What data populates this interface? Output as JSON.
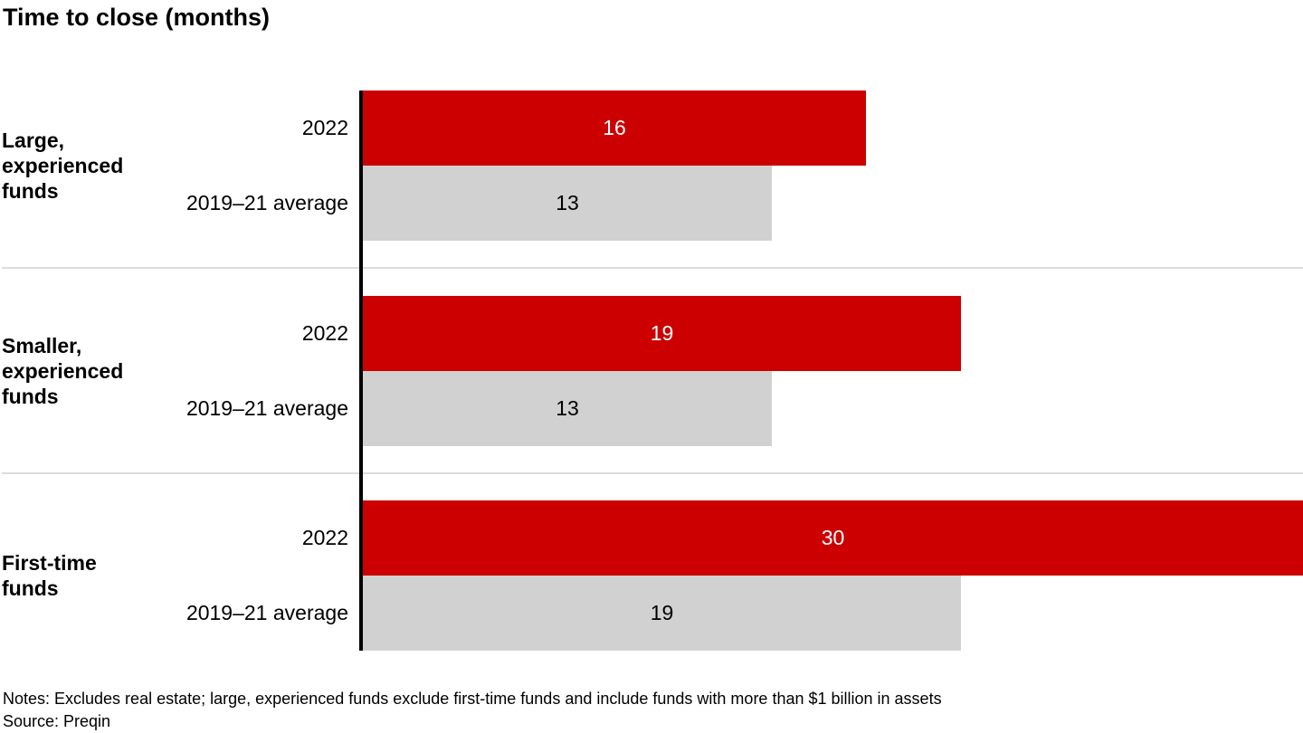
{
  "title": "Time to close (months)",
  "footer": {
    "notes": "Notes: Excludes real estate; large, experienced funds exclude first-time funds and include funds with more than $1 billion in assets",
    "source": "Source: Preqin"
  },
  "colors": {
    "bar_2022": "#cc0000",
    "bar_average": "#d1d1d1",
    "value_on_2022": "#ffffff",
    "value_on_average": "#000000",
    "axis": "#000000",
    "divider": "#dcdcdc"
  },
  "chart_data": {
    "type": "bar",
    "orientation": "horizontal",
    "title": "Time to close (months)",
    "unit": "months",
    "categories": [
      "Large, experienced funds",
      "Smaller, experienced funds",
      "First-time funds"
    ],
    "category_label_lines": [
      [
        "Large,",
        "experienced",
        "funds"
      ],
      [
        "Smaller,",
        "experienced",
        "funds"
      ],
      [
        "First-time",
        "funds"
      ]
    ],
    "series": [
      {
        "name": "2022",
        "color": "#cc0000",
        "text_color": "#ffffff",
        "values": [
          16,
          19,
          30
        ]
      },
      {
        "name": "2019–21 average",
        "color": "#d1d1d1",
        "text_color": "#000000",
        "values": [
          13,
          13,
          19
        ]
      }
    ],
    "xlim": [
      0,
      30
    ],
    "value_labels": "inside-center",
    "grid": false,
    "legend": "row-labels-left-of-axis"
  }
}
